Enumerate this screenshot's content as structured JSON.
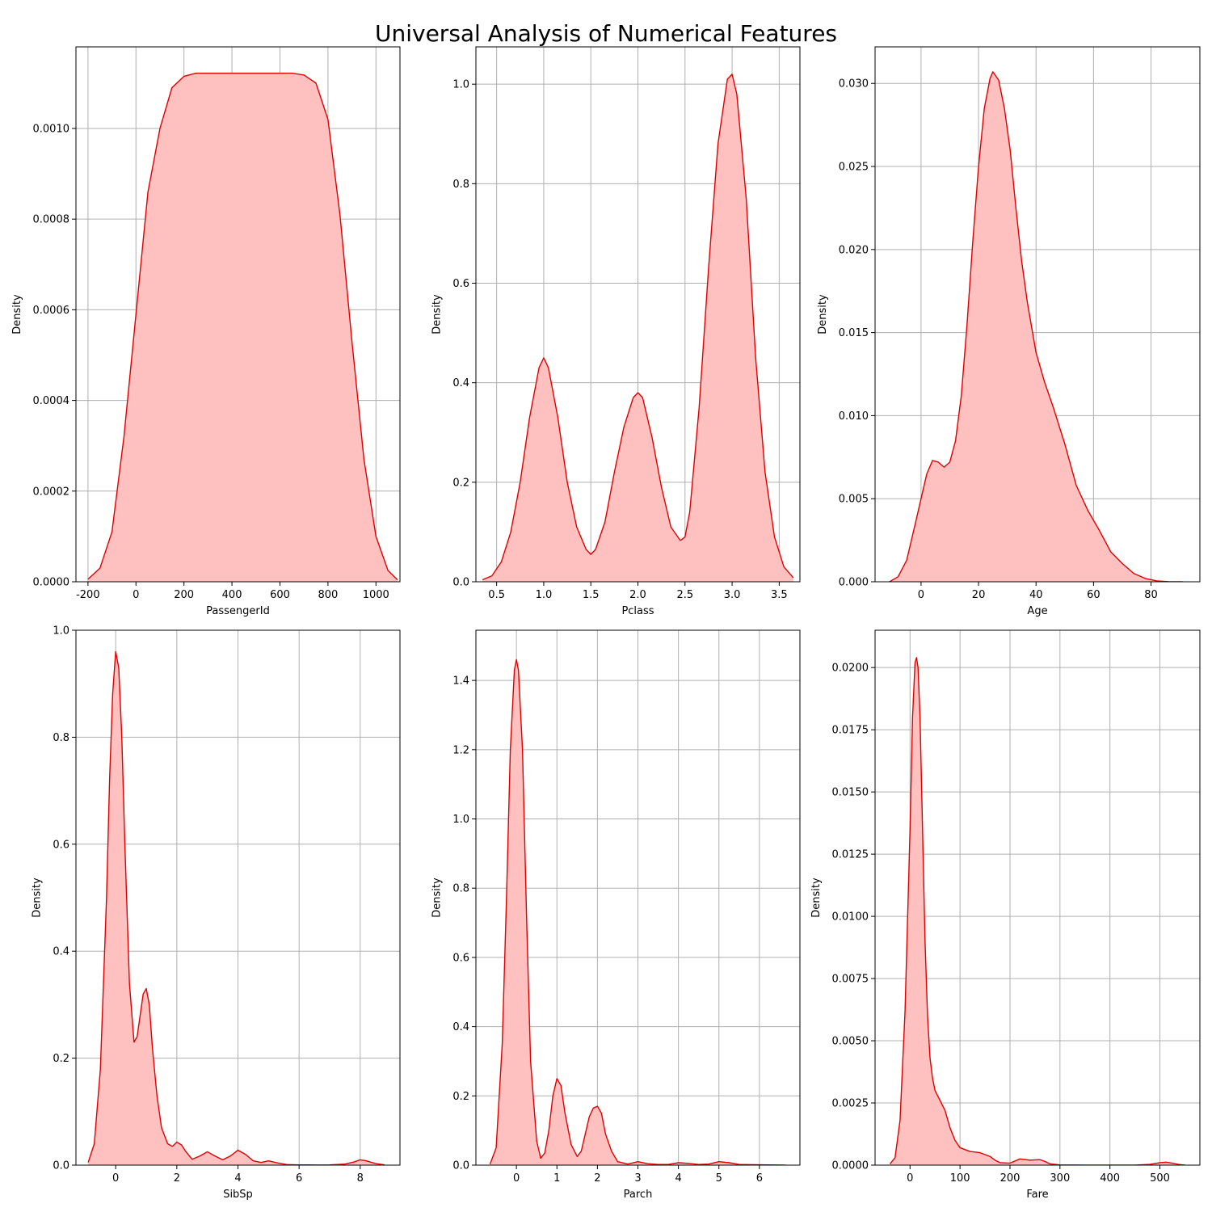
{
  "figure": {
    "title": "Universal Analysis of Numerical Features"
  },
  "style": {
    "line_color": "#e00000",
    "fill_color": "#ffc0c0",
    "grid_color": "#b0b0b0",
    "grid": true
  },
  "chart_data": [
    {
      "type": "area",
      "xlabel": "PassengerId",
      "ylabel": "Density",
      "xlim": [
        -250,
        1100
      ],
      "ylim": [
        0,
        0.00118
      ],
      "xticks": [
        -200,
        0,
        200,
        400,
        600,
        800,
        1000
      ],
      "yticks": [
        0.0,
        0.0002,
        0.0004,
        0.0006,
        0.0008,
        0.001
      ],
      "ytick_labels": [
        "0.0000",
        "0.0002",
        "0.0004",
        "0.0006",
        "0.0008",
        "0.0010"
      ],
      "series": [
        {
          "x": [
            -200,
            -150,
            -100,
            -50,
            0,
            50,
            100,
            150,
            200,
            250,
            300,
            400,
            500,
            600,
            650,
            700,
            750,
            800,
            850,
            900,
            950,
            1000,
            1050,
            1090
          ],
          "y": [
            5.5e-06,
            3e-05,
            0.00011,
            0.00032,
            0.00059,
            0.00086,
            0.001,
            0.00109,
            0.001115,
            0.001122,
            0.001122,
            0.001122,
            0.001122,
            0.001122,
            0.001122,
            0.001118,
            0.0011,
            0.00102,
            0.00081,
            0.00053,
            0.00027,
            0.0001,
            2.5e-05,
            4e-06
          ]
        }
      ]
    },
    {
      "type": "area",
      "xlabel": "Pclass",
      "ylabel": "Density",
      "xlim": [
        0.28,
        3.72
      ],
      "ylim": [
        0,
        1.075
      ],
      "xticks": [
        0.5,
        1.0,
        1.5,
        2.0,
        2.5,
        3.0,
        3.5
      ],
      "yticks": [
        0.0,
        0.2,
        0.4,
        0.6,
        0.8,
        1.0
      ],
      "series": [
        {
          "x": [
            0.35,
            0.45,
            0.55,
            0.65,
            0.75,
            0.85,
            0.95,
            1.0,
            1.05,
            1.15,
            1.25,
            1.35,
            1.45,
            1.5,
            1.55,
            1.65,
            1.75,
            1.85,
            1.95,
            2.0,
            2.05,
            2.15,
            2.25,
            2.35,
            2.45,
            2.5,
            2.55,
            2.65,
            2.75,
            2.85,
            2.95,
            3.0,
            3.05,
            3.15,
            3.25,
            3.35,
            3.45,
            3.55,
            3.65
          ],
          "y": [
            0.004,
            0.012,
            0.04,
            0.1,
            0.2,
            0.33,
            0.43,
            0.45,
            0.43,
            0.33,
            0.2,
            0.11,
            0.065,
            0.055,
            0.065,
            0.12,
            0.22,
            0.31,
            0.37,
            0.38,
            0.37,
            0.29,
            0.19,
            0.11,
            0.083,
            0.09,
            0.14,
            0.35,
            0.63,
            0.88,
            1.01,
            1.02,
            0.98,
            0.77,
            0.45,
            0.22,
            0.09,
            0.03,
            0.008
          ]
        }
      ]
    },
    {
      "type": "area",
      "xlabel": "Age",
      "ylabel": "Density",
      "xlim": [
        -16,
        97
      ],
      "ylim": [
        0,
        0.0322
      ],
      "xticks": [
        0,
        20,
        40,
        60,
        80
      ],
      "yticks": [
        0.0,
        0.005,
        0.01,
        0.015,
        0.02,
        0.025,
        0.03
      ],
      "ytick_labels": [
        "0.000",
        "0.005",
        "0.010",
        "0.015",
        "0.020",
        "0.025",
        "0.030"
      ],
      "series": [
        {
          "x": [
            -11,
            -8,
            -5,
            -2,
            0,
            2,
            4,
            6,
            8,
            10,
            12,
            14,
            16,
            18,
            20,
            22,
            24,
            25,
            27,
            29,
            31,
            33,
            35,
            37,
            40,
            43,
            46,
            50,
            54,
            58,
            62,
            66,
            70,
            74,
            78,
            82,
            86,
            91
          ],
          "y": [
            0.0,
            0.0003,
            0.0013,
            0.0035,
            0.005,
            0.0065,
            0.0073,
            0.0072,
            0.0069,
            0.0072,
            0.0085,
            0.0112,
            0.0155,
            0.0205,
            0.025,
            0.0285,
            0.0303,
            0.0307,
            0.0302,
            0.0285,
            0.026,
            0.0225,
            0.0193,
            0.0168,
            0.0138,
            0.012,
            0.0105,
            0.0083,
            0.0058,
            0.0043,
            0.0031,
            0.0018,
            0.0011,
            0.0005,
            0.0002,
            5e-05,
            1e-05,
            0.0
          ]
        }
      ]
    },
    {
      "type": "area",
      "xlabel": "SibSp",
      "ylabel": "Density",
      "xlim": [
        -1.3,
        9.3
      ],
      "ylim": [
        0,
        1.0
      ],
      "xticks": [
        0,
        2,
        4,
        6,
        8
      ],
      "yticks": [
        0.0,
        0.2,
        0.4,
        0.6,
        0.8,
        1.0
      ],
      "series": [
        {
          "x": [
            -0.9,
            -0.7,
            -0.5,
            -0.3,
            -0.2,
            -0.1,
            0.0,
            0.1,
            0.2,
            0.3,
            0.45,
            0.6,
            0.7,
            0.8,
            0.9,
            1.0,
            1.1,
            1.2,
            1.35,
            1.5,
            1.7,
            1.85,
            2.0,
            2.15,
            2.3,
            2.5,
            2.75,
            3.0,
            3.25,
            3.5,
            3.75,
            4.0,
            4.25,
            4.5,
            4.75,
            5.0,
            5.3,
            5.6,
            6.0,
            6.5,
            7.0,
            7.5,
            7.8,
            8.0,
            8.2,
            8.5,
            8.8
          ],
          "y": [
            0.005,
            0.04,
            0.18,
            0.5,
            0.72,
            0.88,
            0.96,
            0.93,
            0.8,
            0.6,
            0.34,
            0.23,
            0.24,
            0.28,
            0.32,
            0.33,
            0.3,
            0.22,
            0.13,
            0.07,
            0.04,
            0.035,
            0.043,
            0.038,
            0.025,
            0.011,
            0.017,
            0.025,
            0.017,
            0.01,
            0.017,
            0.028,
            0.02,
            0.008,
            0.005,
            0.008,
            0.004,
            0.001,
            0.0005,
            0.0003,
            0.0005,
            0.002,
            0.006,
            0.01,
            0.008,
            0.003,
            0.0005
          ]
        }
      ]
    },
    {
      "type": "area",
      "xlabel": "Parch",
      "ylabel": "Density",
      "xlim": [
        -1.0,
        7.0
      ],
      "ylim": [
        0,
        1.545
      ],
      "xticks": [
        0,
        1,
        2,
        3,
        4,
        5,
        6
      ],
      "yticks": [
        0.0,
        0.2,
        0.4,
        0.6,
        0.8,
        1.0,
        1.2,
        1.4
      ],
      "series": [
        {
          "x": [
            -0.65,
            -0.5,
            -0.35,
            -0.25,
            -0.15,
            -0.05,
            0.0,
            0.05,
            0.15,
            0.25,
            0.35,
            0.5,
            0.6,
            0.7,
            0.8,
            0.9,
            1.0,
            1.1,
            1.2,
            1.35,
            1.5,
            1.6,
            1.7,
            1.8,
            1.9,
            2.0,
            2.1,
            2.2,
            2.35,
            2.5,
            2.75,
            3.0,
            3.25,
            3.5,
            3.75,
            4.0,
            4.25,
            4.5,
            4.75,
            5.0,
            5.25,
            5.5,
            6.0,
            6.65
          ],
          "y": [
            0.003,
            0.05,
            0.35,
            0.75,
            1.2,
            1.43,
            1.46,
            1.43,
            1.2,
            0.72,
            0.3,
            0.07,
            0.02,
            0.035,
            0.1,
            0.2,
            0.25,
            0.23,
            0.15,
            0.06,
            0.025,
            0.04,
            0.09,
            0.14,
            0.165,
            0.17,
            0.15,
            0.09,
            0.04,
            0.01,
            0.003,
            0.01,
            0.004,
            0.002,
            0.002,
            0.007,
            0.005,
            0.002,
            0.003,
            0.01,
            0.007,
            0.002,
            0.001,
            0.0
          ]
        }
      ]
    },
    {
      "type": "area",
      "xlabel": "Fare",
      "ylabel": "Density",
      "xlim": [
        -70,
        580
      ],
      "ylim": [
        0,
        0.0215
      ],
      "xticks": [
        0,
        100,
        200,
        300,
        400,
        500
      ],
      "yticks": [
        0.0,
        0.0025,
        0.005,
        0.0075,
        0.01,
        0.0125,
        0.015,
        0.0175,
        0.02
      ],
      "ytick_labels": [
        "0.0000",
        "0.0025",
        "0.0050",
        "0.0075",
        "0.0100",
        "0.0125",
        "0.0150",
        "0.0175",
        "0.0200"
      ],
      "series": [
        {
          "x": [
            -40,
            -30,
            -20,
            -10,
            0,
            5,
            10,
            13,
            16,
            20,
            25,
            30,
            35,
            40,
            45,
            50,
            55,
            60,
            70,
            80,
            90,
            100,
            120,
            140,
            160,
            170,
            180,
            200,
            220,
            240,
            260,
            270,
            280,
            300,
            350,
            400,
            450,
            480,
            500,
            512,
            525,
            540,
            550
          ],
          "y": [
            5e-05,
            0.0003,
            0.0018,
            0.0062,
            0.0135,
            0.018,
            0.0202,
            0.0204,
            0.02,
            0.018,
            0.0135,
            0.009,
            0.006,
            0.0043,
            0.0035,
            0.003,
            0.0028,
            0.0026,
            0.0022,
            0.0015,
            0.001,
            0.0007,
            0.00055,
            0.0005,
            0.00035,
            0.0002,
            0.0001,
            8e-05,
            0.00025,
            0.0002,
            0.00022,
            0.00015,
            5e-05,
            1e-05,
            0.0,
            0.0,
            0.0,
            3e-05,
            0.0001,
            0.00012,
            8e-05,
            2e-05,
            0.0
          ]
        }
      ]
    }
  ]
}
